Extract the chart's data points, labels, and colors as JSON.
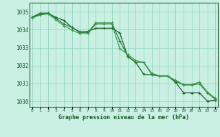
{
  "title": "Graphe pression niveau de la mer (hPa)",
  "background_color": "#caf0e4",
  "grid_color": "#90d4bc",
  "line_color_1": "#1a5c2a",
  "line_color_2": "#2a7a3a",
  "line_color_3": "#3a9a4a",
  "x_hours": [
    0,
    1,
    2,
    3,
    4,
    5,
    6,
    7,
    8,
    9,
    10,
    11,
    12,
    13,
    14,
    15,
    16,
    17,
    18,
    19,
    20,
    21,
    22,
    23
  ],
  "series1": [
    1034.7,
    1034.85,
    1034.92,
    1034.68,
    1034.52,
    1034.12,
    1033.88,
    1033.9,
    1034.08,
    1034.08,
    1034.08,
    1033.82,
    1032.5,
    1032.18,
    1031.52,
    1031.48,
    1031.42,
    1031.42,
    1031.08,
    1030.48,
    1030.48,
    1030.48,
    1030.02,
    1030.08
  ],
  "series2": [
    1034.7,
    1034.92,
    1034.92,
    1034.62,
    1034.32,
    1034.12,
    1033.85,
    1033.85,
    1034.38,
    1034.38,
    1034.38,
    1033.38,
    1032.52,
    1032.18,
    1032.18,
    1031.52,
    1031.42,
    1031.42,
    1031.12,
    1030.92,
    1030.92,
    1030.98,
    1030.48,
    1030.12
  ],
  "series3": [
    1034.65,
    1034.82,
    1034.88,
    1034.55,
    1034.22,
    1033.98,
    1033.78,
    1033.78,
    1034.32,
    1034.32,
    1034.32,
    1032.95,
    1032.62,
    1032.28,
    1032.18,
    1031.58,
    1031.42,
    1031.42,
    1031.18,
    1030.95,
    1030.95,
    1031.08,
    1030.52,
    1030.18
  ],
  "ylim": [
    1029.7,
    1035.5
  ],
  "yticks": [
    1030,
    1031,
    1032,
    1033,
    1034,
    1035
  ],
  "xlim": [
    -0.3,
    23.3
  ]
}
